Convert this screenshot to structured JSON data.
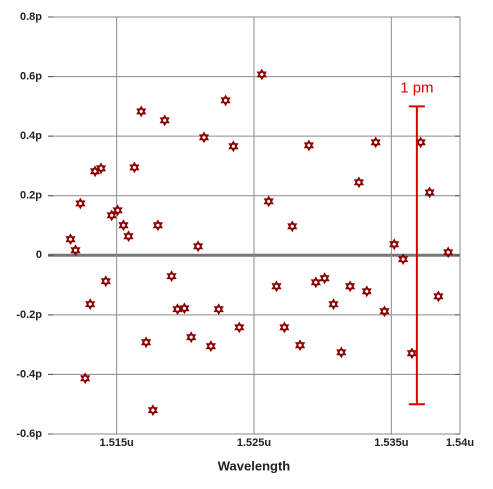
{
  "chart_data": {
    "type": "scatter",
    "x_label": "Wavelength",
    "color": "#8b0000",
    "xlim": [
      1.51,
      1.54
    ],
    "ylim": [
      -0.6,
      0.8
    ],
    "xticks": [
      {
        "value": 1.515,
        "label": "1.515u"
      },
      {
        "value": 1.525,
        "label": "1.525u"
      },
      {
        "value": 1.535,
        "label": "1.535u"
      },
      {
        "value": 1.54,
        "label": "1.54u"
      }
    ],
    "yticks": [
      {
        "value": 0.8,
        "label": "0.8p"
      },
      {
        "value": 0.6,
        "label": "0.6p"
      },
      {
        "value": 0.4,
        "label": "0.4p"
      },
      {
        "value": 0.2,
        "label": "0.2p"
      },
      0,
      {
        "value": -0.2,
        "label": "-0.2p"
      },
      {
        "value": -0.4,
        "label": "-0.4p"
      },
      {
        "value": -0.6,
        "label": "-0.6p"
      }
    ],
    "grid": true,
    "x": [
      1.51164,
      1.512,
      1.51236,
      1.51271,
      1.51307,
      1.51343,
      1.51386,
      1.51421,
      1.51464,
      1.51507,
      1.5155,
      1.51586,
      1.51629,
      1.51679,
      1.51714,
      1.51764,
      1.518,
      1.5185,
      1.519,
      1.51943,
      1.51993,
      1.52043,
      1.52093,
      1.52136,
      1.52186,
      1.52243,
      1.52293,
      1.5235,
      1.52393,
      1.52557,
      1.52607,
      1.52664,
      1.52721,
      1.52779,
      1.52836,
      1.529,
      1.5295,
      1.53014,
      1.53079,
      1.53136,
      1.532,
      1.53264,
      1.53321,
      1.53386,
      1.5345,
      1.53521,
      1.53586,
      1.5365,
      1.53714,
      1.53779,
      1.53843,
      1.53914
    ],
    "values": [
      0.054,
      0.017,
      0.174,
      -0.413,
      -0.164,
      0.282,
      0.292,
      -0.087,
      0.134,
      0.151,
      0.101,
      0.064,
      0.295,
      0.483,
      -0.292,
      -0.52,
      0.101,
      0.453,
      -0.07,
      -0.181,
      -0.178,
      -0.275,
      0.03,
      0.396,
      -0.305,
      -0.181,
      0.52,
      0.366,
      -0.242,
      0.607,
      0.181,
      -0.104,
      -0.242,
      0.097,
      -0.302,
      0.369,
      -0.091,
      -0.077,
      -0.164,
      -0.326,
      -0.104,
      0.245,
      -0.121,
      0.379,
      -0.188,
      0.037,
      -0.013,
      -0.329,
      0.379,
      0.211,
      -0.138,
      0.01
    ],
    "annotation": {
      "text": "1 pm",
      "color": "#dd0000",
      "x": 1.53686,
      "top": 0.5,
      "bottom": -0.5
    }
  }
}
